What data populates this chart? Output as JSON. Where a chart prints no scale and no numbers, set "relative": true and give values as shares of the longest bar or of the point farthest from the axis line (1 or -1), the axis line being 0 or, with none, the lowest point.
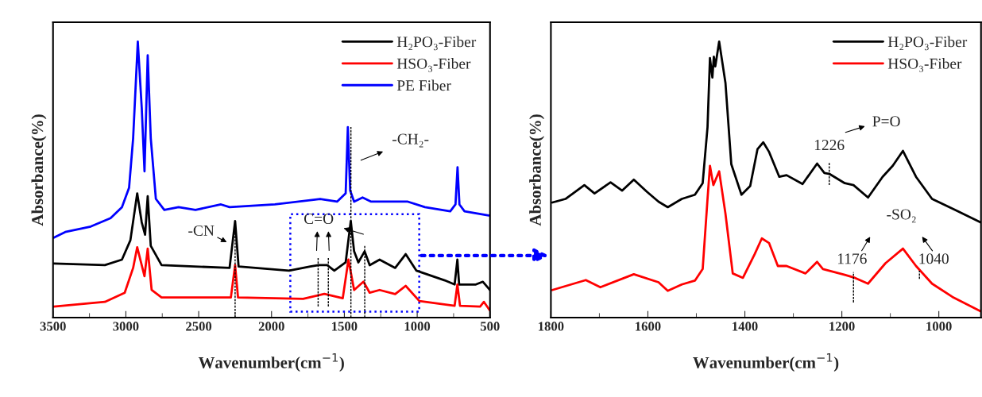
{
  "chart_data": [
    {
      "type": "line",
      "xlabel": "Wavenumber(cm$^{−1}$)",
      "ylabel": "Absorbance(%)",
      "relative": true,
      "xlim": [
        3500,
        500
      ],
      "xticks": [
        3500,
        3000,
        2500,
        2000,
        1500,
        1000,
        500
      ],
      "legend": "top right",
      "grid": false,
      "series": [
        {
          "name": "H₂PO₃-Fiber",
          "color": "#000000",
          "x": [
            3494,
            3144,
            3027,
            2969,
            2922,
            2891,
            2868,
            2850,
            2829,
            2755,
            2288,
            2250,
            2226,
            1880,
            1734,
            1676,
            1618,
            1569,
            1491,
            1456,
            1433,
            1404,
            1361,
            1326,
            1258,
            1151,
            1079,
            1005,
            811,
            743,
            724,
            712,
            597,
            549,
            500
          ],
          "values": [
            0.196,
            0.19,
            0.21,
            0.28,
            0.45,
            0.345,
            0.3,
            0.44,
            0.26,
            0.19,
            0.18,
            0.35,
            0.185,
            0.17,
            0.185,
            0.19,
            0.19,
            0.17,
            0.2,
            0.35,
            0.24,
            0.2,
            0.24,
            0.19,
            0.21,
            0.18,
            0.23,
            0.17,
            0.135,
            0.12,
            0.21,
            0.12,
            0.12,
            0.13,
            0.1
          ]
        },
        {
          "name": "HSO₃-Fiber",
          "color": "#ff0000",
          "x": [
            3494,
            3144,
            3008,
            2950,
            2922,
            2872,
            2850,
            2823,
            2755,
            2279,
            2250,
            2230,
            1783,
            1637,
            1511,
            1472,
            1433,
            1369,
            1326,
            1258,
            1151,
            1079,
            985,
            743,
            724,
            706,
            568,
            542,
            500
          ],
          "values": [
            0.04,
            0.057,
            0.09,
            0.18,
            0.255,
            0.15,
            0.25,
            0.1,
            0.073,
            0.073,
            0.19,
            0.073,
            0.068,
            0.086,
            0.07,
            0.21,
            0.1,
            0.13,
            0.09,
            0.1,
            0.085,
            0.115,
            0.06,
            0.043,
            0.12,
            0.043,
            0.04,
            0.057,
            0.025
          ]
        },
        {
          "name": "PE Fiber",
          "color": "#0000ff",
          "x": [
            3494,
            3416,
            3241,
            3105,
            3027,
            2978,
            2950,
            2918,
            2891,
            2872,
            2850,
            2829,
            2794,
            2736,
            2638,
            2522,
            2347,
            2288,
            1977,
            1666,
            1550,
            1491,
            1476,
            1460,
            1433,
            1375,
            1316,
            1064,
            947,
            773,
            737,
            723,
            710,
            675,
            509
          ],
          "values": [
            0.29,
            0.31,
            0.33,
            0.36,
            0.4,
            0.47,
            0.65,
            1.0,
            0.76,
            0.53,
            0.95,
            0.65,
            0.43,
            0.39,
            0.4,
            0.39,
            0.41,
            0.4,
            0.41,
            0.43,
            0.42,
            0.45,
            0.69,
            0.46,
            0.42,
            0.435,
            0.42,
            0.42,
            0.4,
            0.385,
            0.41,
            0.545,
            0.41,
            0.385,
            0.37
          ]
        },
        {
          "color": "#000000",
          "line_style": "dashed",
          "x": [
            2250,
            2250
          ],
          "values": [
            0.0,
            0.35
          ]
        },
        {
          "color": "#000000",
          "line_style": "dashed",
          "x": [
            1680,
            1680
          ],
          "values": [
            0.04,
            0.22
          ]
        },
        {
          "color": "#000000",
          "line_style": "dashed",
          "x": [
            1610,
            1610
          ],
          "values": [
            0.04,
            0.22
          ]
        },
        {
          "color": "#000000",
          "line_style": "dashed",
          "x": [
            1455,
            1455
          ],
          "values": [
            0.0,
            0.69
          ]
        },
        {
          "color": "#000000",
          "line_style": "dashed",
          "x": [
            1360,
            1360
          ],
          "values": [
            0.0,
            0.26
          ]
        }
      ],
      "annotations": [
        "-CN",
        "C=O",
        "-CH₂-"
      ]
    },
    {
      "type": "line",
      "xlabel": "Wavenumber(cm$^{−1}$)",
      "ylabel": "Absorbance(%)",
      "relative": true,
      "xlim": [
        1800,
        913
      ],
      "xticks": [
        1800,
        1600,
        1400,
        1200,
        1000
      ],
      "legend": "top right",
      "grid": false,
      "series": [
        {
          "name": "H₂PO₃-Fiber",
          "color": "#000000",
          "x": [
            1797,
            1770,
            1731,
            1710,
            1677,
            1653,
            1629,
            1602,
            1578,
            1559,
            1530,
            1503,
            1487,
            1477,
            1472,
            1467,
            1464,
            1461,
            1453,
            1440,
            1428,
            1407,
            1389,
            1374,
            1362,
            1350,
            1329,
            1314,
            1281,
            1251,
            1236,
            1225,
            1194,
            1176,
            1146,
            1116,
            1095,
            1074,
            1047,
            1014,
            966,
            914
          ],
          "values": [
            0.417,
            0.43,
            0.48,
            0.45,
            0.49,
            0.46,
            0.5,
            0.456,
            0.42,
            0.4,
            0.43,
            0.445,
            0.487,
            0.69,
            0.94,
            0.87,
            0.945,
            0.91,
            1.0,
            0.85,
            0.556,
            0.445,
            0.477,
            0.61,
            0.635,
            0.6,
            0.51,
            0.516,
            0.484,
            0.558,
            0.524,
            0.52,
            0.487,
            0.48,
            0.435,
            0.51,
            0.55,
            0.604,
            0.51,
            0.43,
            0.39,
            0.345
          ]
        },
        {
          "name": "HSO₃-Fiber",
          "color": "#ff0000",
          "x": [
            1797,
            1728,
            1698,
            1629,
            1578,
            1559,
            1530,
            1503,
            1487,
            1477,
            1472,
            1465,
            1453,
            1440,
            1425,
            1404,
            1380,
            1365,
            1350,
            1332,
            1314,
            1275,
            1251,
            1239,
            1194,
            1173,
            1146,
            1110,
            1074,
            1047,
            1014,
            972,
            914
          ],
          "values": [
            0.1,
            0.136,
            0.11,
            0.157,
            0.128,
            0.097,
            0.12,
            0.134,
            0.176,
            0.43,
            0.55,
            0.48,
            0.53,
            0.376,
            0.16,
            0.144,
            0.229,
            0.287,
            0.27,
            0.187,
            0.187,
            0.16,
            0.202,
            0.176,
            0.155,
            0.144,
            0.123,
            0.197,
            0.25,
            0.187,
            0.123,
            0.075,
            0.023
          ]
        },
        {
          "color": "#000000",
          "line_style": "dashed",
          "x": [
            1226,
            1226
          ],
          "values": [
            0.48,
            0.56
          ]
        },
        {
          "color": "#000000",
          "line_style": "dashed",
          "x": [
            1176,
            1176
          ],
          "values": [
            0.055,
            0.165
          ]
        },
        {
          "color": "#000000",
          "line_style": "dashed",
          "x": [
            1040,
            1040
          ],
          "values": [
            0.14,
            0.17
          ]
        }
      ],
      "annotations": [
        "P=O",
        "1226",
        "-SO₂",
        "1176",
        "1040"
      ]
    }
  ]
}
